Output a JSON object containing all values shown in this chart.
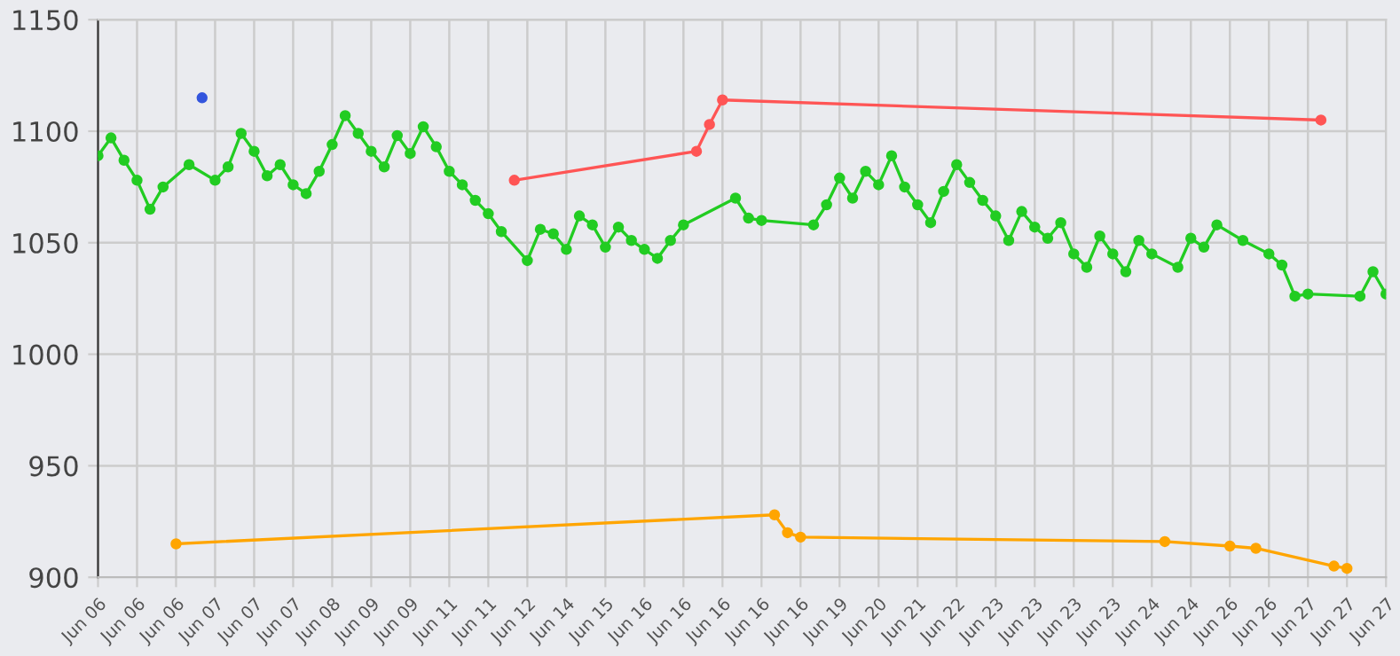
{
  "chart_data": {
    "type": "line",
    "categories": [
      "Jun 06",
      null,
      null,
      "Jun 06",
      null,
      null,
      "Jun 06",
      null,
      null,
      "Jun 07",
      null,
      null,
      "Jun 07",
      null,
      null,
      "Jun 07",
      null,
      null,
      "Jun 08",
      null,
      null,
      "Jun 09",
      null,
      null,
      "Jun 09",
      null,
      null,
      "Jun 11",
      null,
      null,
      "Jun 11",
      null,
      null,
      "Jun 12",
      null,
      null,
      "Jun 14",
      null,
      null,
      "Jun 15",
      null,
      null,
      "Jun 16",
      null,
      null,
      "Jun 16",
      null,
      null,
      "Jun 16",
      null,
      null,
      "Jun 16",
      null,
      null,
      "Jun 16",
      null,
      null,
      "Jun 19",
      null,
      null,
      "Jun 20",
      null,
      null,
      "Jun 21",
      null,
      null,
      "Jun 22",
      null,
      null,
      "Jun 23",
      null,
      null,
      "Jun 23",
      null,
      null,
      "Jun 23",
      null,
      null,
      "Jun 23",
      null,
      null,
      "Jun 24",
      null,
      null,
      "Jun 24",
      null,
      null,
      "Jun 26",
      null,
      null,
      "Jun 26",
      null,
      null,
      "Jun 27",
      null,
      null,
      "Jun 27",
      null,
      null,
      "Jun 27"
    ],
    "ylim": [
      900,
      1150
    ],
    "yticks": [
      900,
      950,
      1000,
      1050,
      1100,
      1150
    ],
    "grid": true,
    "marker": "circle",
    "line_style": "solid",
    "series": [
      {
        "color": "#ff5555",
        "values": [
          null,
          null,
          null,
          null,
          null,
          null,
          null,
          null,
          null,
          null,
          null,
          null,
          null,
          null,
          null,
          null,
          null,
          null,
          null,
          null,
          null,
          null,
          null,
          null,
          null,
          null,
          null,
          null,
          null,
          null,
          null,
          null,
          1078,
          null,
          null,
          null,
          null,
          null,
          null,
          null,
          null,
          null,
          null,
          null,
          null,
          null,
          1091,
          1103,
          1114,
          null,
          null,
          null,
          null,
          null,
          null,
          null,
          null,
          null,
          null,
          null,
          null,
          null,
          null,
          null,
          null,
          null,
          null,
          null,
          null,
          null,
          null,
          null,
          null,
          null,
          null,
          null,
          null,
          null,
          null,
          null,
          null,
          null,
          null,
          null,
          null,
          null,
          null,
          null,
          null,
          null,
          null,
          null,
          null,
          null,
          1105,
          null,
          null,
          null,
          null,
          null
        ]
      },
      {
        "color": "#ffa500",
        "values": [
          null,
          null,
          null,
          null,
          null,
          null,
          915,
          null,
          null,
          null,
          null,
          null,
          null,
          null,
          null,
          null,
          null,
          null,
          null,
          null,
          null,
          null,
          null,
          null,
          null,
          null,
          null,
          null,
          null,
          null,
          null,
          null,
          null,
          null,
          null,
          null,
          null,
          null,
          null,
          null,
          null,
          null,
          null,
          null,
          null,
          null,
          null,
          null,
          null,
          null,
          null,
          null,
          928,
          920,
          918,
          null,
          null,
          null,
          null,
          null,
          null,
          null,
          null,
          null,
          null,
          null,
          null,
          null,
          null,
          null,
          null,
          null,
          null,
          null,
          null,
          null,
          null,
          null,
          null,
          null,
          null,
          null,
          916,
          null,
          null,
          null,
          null,
          914,
          null,
          913,
          null,
          null,
          null,
          null,
          null,
          905,
          904,
          null,
          null,
          null
        ]
      },
      {
        "color": "#22cc22",
        "values": [
          1089,
          1097,
          1087,
          1078,
          1065,
          1075,
          null,
          1085,
          null,
          1078,
          1084,
          1099,
          1091,
          1080,
          1085,
          1076,
          1072,
          1082,
          1094,
          1107,
          1099,
          1091,
          1084,
          1098,
          1090,
          1102,
          1093,
          1082,
          1076,
          1069,
          1063,
          1055,
          null,
          1042,
          1056,
          1054,
          1047,
          1062,
          1058,
          1048,
          1057,
          1051,
          1047,
          1043,
          1051,
          1058,
          null,
          null,
          null,
          1070,
          1061,
          1060,
          null,
          null,
          null,
          1058,
          1067,
          1079,
          1070,
          1082,
          1076,
          1089,
          1075,
          1067,
          1059,
          1073,
          1085,
          1077,
          1069,
          1062,
          1051,
          1064,
          1057,
          1052,
          1059,
          1045,
          1039,
          1053,
          1045,
          1037,
          1051,
          1045,
          null,
          1039,
          1052,
          1048,
          1058,
          null,
          1051,
          null,
          1045,
          1040,
          1026,
          1027,
          null,
          null,
          null,
          1026,
          1037,
          1027
        ]
      },
      {
        "color": "#3355dd",
        "type": "scatter",
        "values": [
          null,
          null,
          null,
          null,
          null,
          null,
          null,
          null,
          1115,
          null,
          null,
          null,
          null,
          null,
          null,
          null,
          null,
          null,
          null,
          null,
          null,
          null,
          null,
          null,
          null,
          null,
          null,
          null,
          null,
          null,
          null,
          null,
          null,
          null,
          null,
          null,
          null,
          null,
          null,
          null,
          null,
          null,
          null,
          null,
          null,
          null,
          null,
          null,
          null,
          null,
          null,
          null,
          null,
          null,
          null,
          null,
          null,
          null,
          null,
          null,
          null,
          null,
          null,
          null,
          null,
          null,
          null,
          null,
          null,
          null,
          null,
          null,
          null,
          null,
          null,
          null,
          null,
          null,
          null,
          null,
          null,
          null,
          null,
          null,
          null,
          null,
          null,
          null,
          null,
          null,
          null,
          null,
          null,
          null,
          null,
          null,
          null,
          null,
          null,
          null
        ]
      }
    ]
  }
}
